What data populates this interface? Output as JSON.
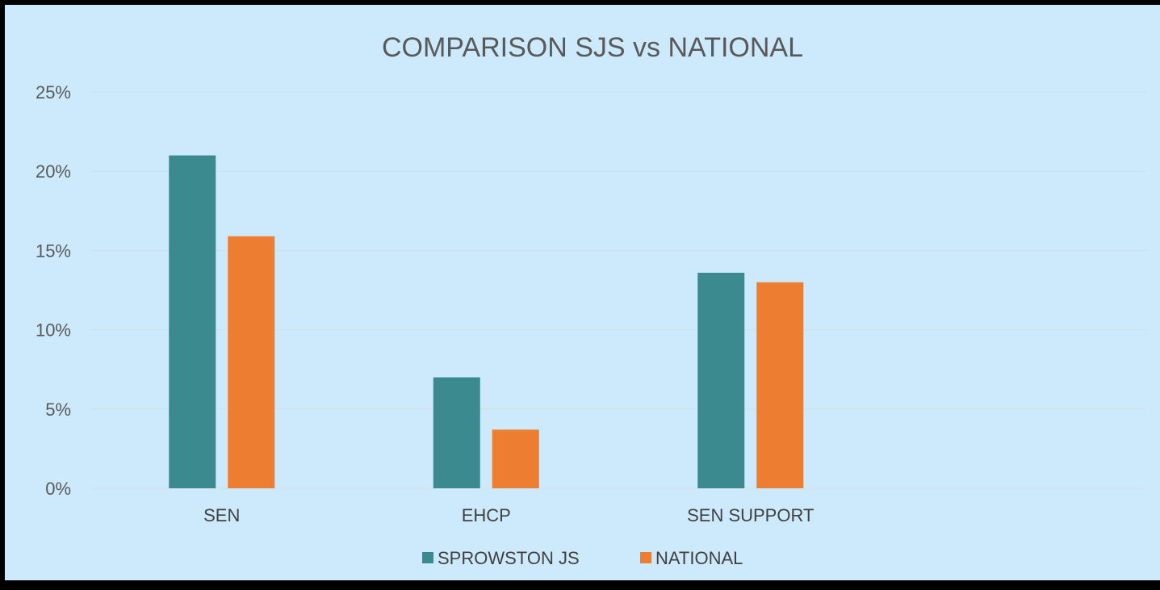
{
  "chart_data": {
    "type": "bar",
    "title": "COMPARISON SJS vs NATIONAL",
    "categories": [
      "SEN",
      "EHCP",
      "SEN SUPPORT"
    ],
    "category_slots": 4,
    "series": [
      {
        "name": "SPROWSTON JS",
        "values": [
          21.0,
          7.0,
          13.6
        ],
        "color": "#3b8a8f"
      },
      {
        "name": "NATIONAL",
        "values": [
          15.9,
          3.7,
          13.0
        ],
        "color": "#ed7d31"
      }
    ],
    "ylim": [
      0,
      25
    ],
    "yticks": [
      0,
      5,
      10,
      15,
      20,
      25
    ],
    "ytick_labels": [
      "0%",
      "5%",
      "10%",
      "15%",
      "20%",
      "25%"
    ],
    "xlabel": "",
    "ylabel": "",
    "grid": true,
    "legend_position": "bottom",
    "background": "#cdeafc"
  }
}
